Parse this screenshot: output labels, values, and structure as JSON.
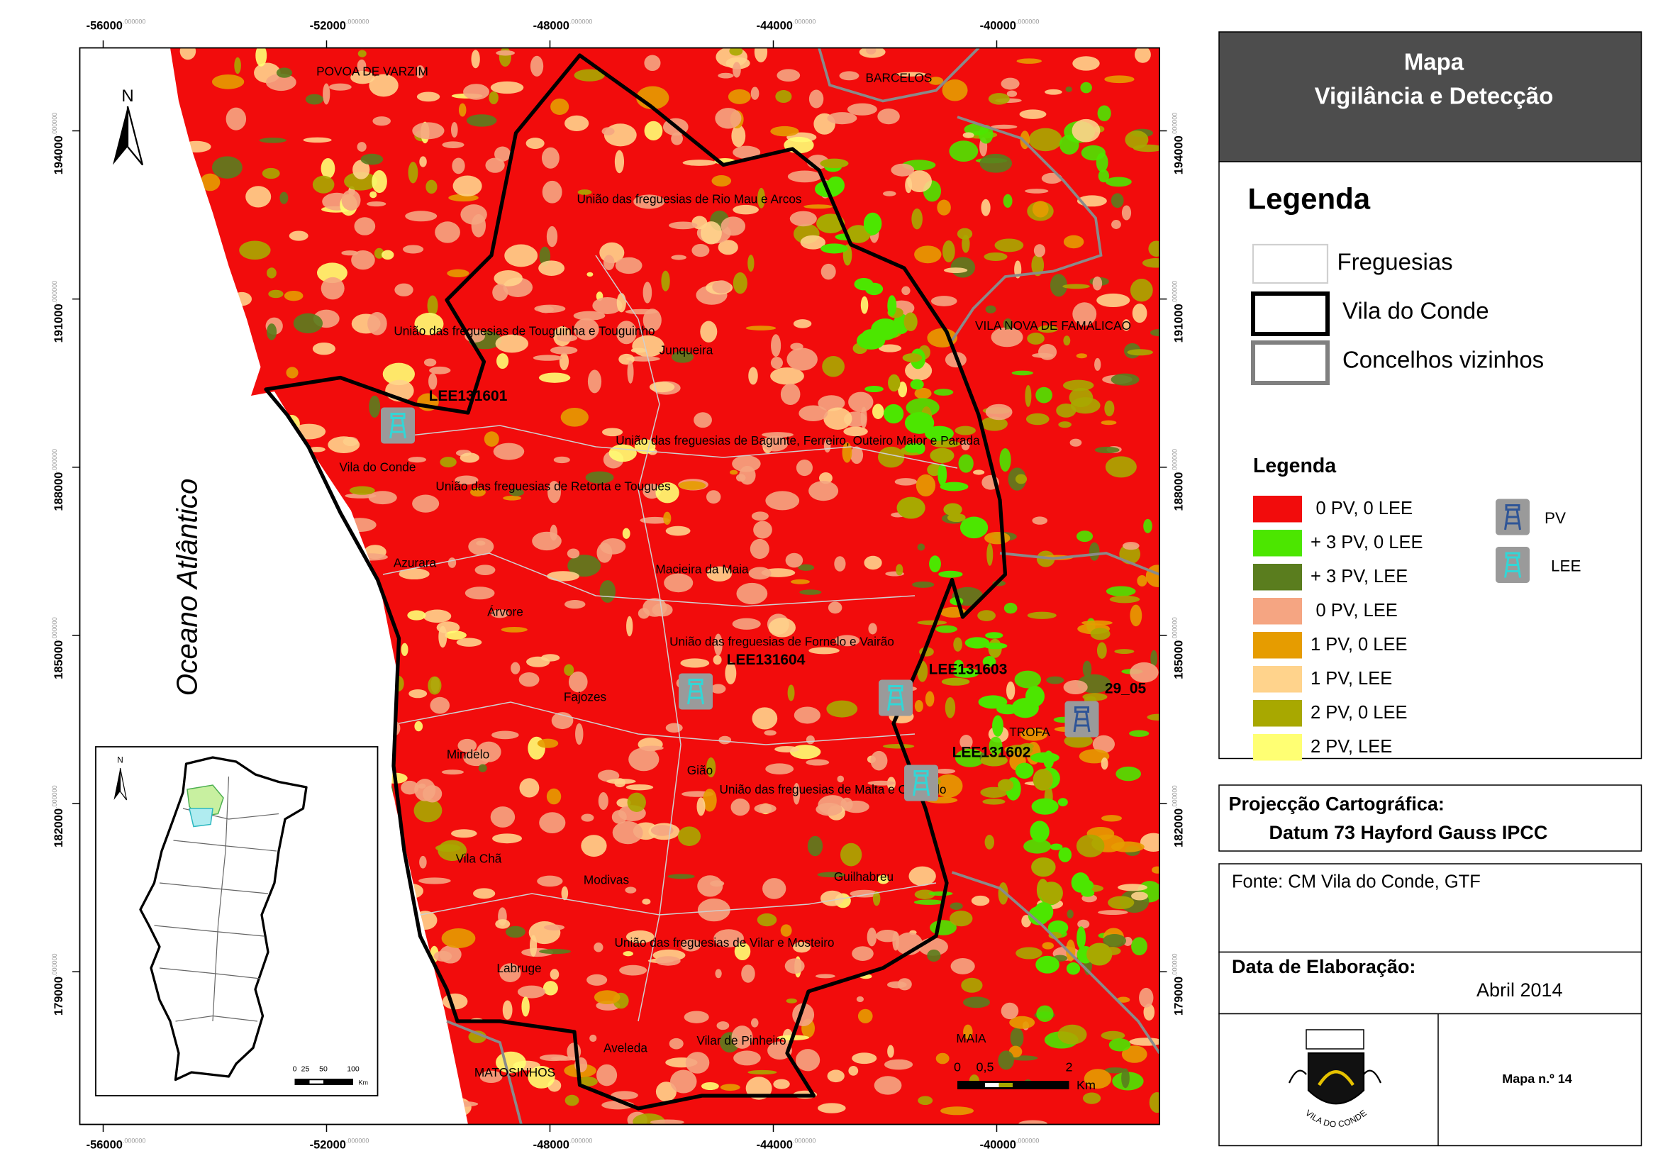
{
  "header": {
    "title_line1": "Mapa",
    "title_line2": "Vigilância e Detecção"
  },
  "legend_boundaries": {
    "title": "Legenda",
    "items": [
      {
        "label": "Freguesias",
        "color": "#d0d0d0"
      },
      {
        "label": "Vila do Conde",
        "color": "#000000"
      },
      {
        "label": "Concelhos vizinhos",
        "color": "#808080"
      }
    ]
  },
  "legend_classes": {
    "title": "Legenda",
    "items": [
      {
        "label": "0 PV, 0 LEE",
        "color": "#f20c0c"
      },
      {
        "label": "+ 3 PV, 0 LEE",
        "color": "#4ce600"
      },
      {
        "label": "+ 3 PV, LEE",
        "color": "#5a7d1e"
      },
      {
        "label": "0 PV, LEE",
        "color": "#f5a582"
      },
      {
        "label": "1 PV, 0 LEE",
        "color": "#e69c00"
      },
      {
        "label": "1 PV, LEE",
        "color": "#ffd38c"
      },
      {
        "label": "2 PV, 0 LEE",
        "color": "#a8a800"
      },
      {
        "label": "2 PV, LEE",
        "color": "#ffff73"
      }
    ]
  },
  "legend_symbols": [
    {
      "label": "PV",
      "color": "#2f5597"
    },
    {
      "label": "LEE",
      "color": "#33d6d6"
    }
  ],
  "projection": {
    "title": "Projecção Cartográfica:",
    "datum": "Datum 73 Hayford Gauss IPCC"
  },
  "source": "Fonte: CM Vila do Conde, GTF",
  "date": {
    "title": "Data de Elaboração:",
    "value": "Abril 2014"
  },
  "map_number": "Mapa n.º 14",
  "logo_text": "VILA DO CONDE",
  "map": {
    "xticks": [
      -56000,
      -52000,
      -48000,
      -44000,
      -40000
    ],
    "yticks": [
      194000,
      191000,
      188000,
      185000,
      182000,
      179000
    ],
    "tick_suffix": ".000000",
    "north": "N",
    "ocean": "Oceano Atlântico",
    "places": [
      "POVOA DE VARZIM",
      "BARCELOS",
      "União das freguesias de Rio Mau e Arcos",
      "União das freguesias de Touguinha e Touguinho",
      "Junqueira",
      "VILA NOVA DE FAMALICAO",
      "União das freguesias de Bagunte, Ferreiro, Outeiro Maior e Parada",
      "Vila do Conde",
      "União das freguesias de Retorta e Tougues",
      "Azurara",
      "Macieira da Maia",
      "Árvore",
      "União das freguesias de Fornelo e Vairão",
      "Fajozes",
      "TROFA",
      "Mindelo",
      "Gião",
      "União das freguesias de Malta e Canidelo",
      "Vila Chã",
      "Modivas",
      "Guilhabreu",
      "União das freguesias de Vilar e Mosteiro",
      "Labruge",
      "Vilar de Pinheiro",
      "Aveleda",
      "MAIA",
      "MATOSINHOS"
    ],
    "towers": [
      {
        "name": "LEE131601",
        "symbol": 1
      },
      {
        "name": "LEE131604",
        "symbol": 1
      },
      {
        "name": "LEE131603",
        "symbol": 1
      },
      {
        "name": "LEE131602",
        "symbol": 1
      },
      {
        "name": "29_05",
        "symbol": 0
      }
    ],
    "scale_labels": [
      "0",
      "0,5",
      "2"
    ],
    "scale_unit": "Km"
  },
  "inset": {
    "north": "N",
    "scale_labels": [
      "0",
      "25",
      "50",
      "100"
    ],
    "scale_unit": "Km"
  }
}
